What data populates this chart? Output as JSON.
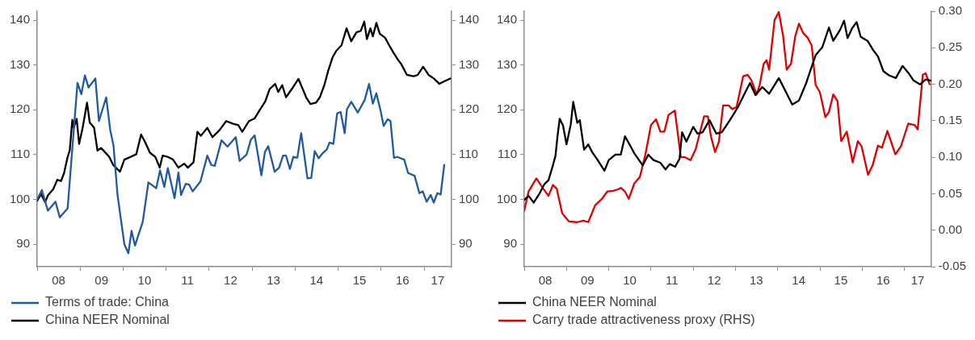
{
  "chart_data": [
    {
      "type": "line",
      "legend": "bottom",
      "grid": false,
      "xlim": [
        "2008-01-01",
        "2017-08-21"
      ],
      "xticks": [
        {
          "value": "2008",
          "label": null
        },
        {
          "value": "2008-07-01",
          "label": "08"
        },
        {
          "value": "2009",
          "label": null
        },
        {
          "value": "2009-07-01",
          "label": "09"
        },
        {
          "value": "2010",
          "label": null
        },
        {
          "value": "2010-07-01",
          "label": "10"
        },
        {
          "value": "2011",
          "label": null
        },
        {
          "value": "2011-07-01",
          "label": "11"
        },
        {
          "value": "2012",
          "label": null
        },
        {
          "value": "2012-07-01",
          "label": "12"
        },
        {
          "value": "2013",
          "label": null
        },
        {
          "value": "2013-07-01",
          "label": "13"
        },
        {
          "value": "2014",
          "label": null
        },
        {
          "value": "2014-07-01",
          "label": "14"
        },
        {
          "value": "2015",
          "label": null
        },
        {
          "value": "2015-07-01",
          "label": "15"
        },
        {
          "value": "2016",
          "label": null
        },
        {
          "value": "2016-07-01",
          "label": "16"
        },
        {
          "value": "2017",
          "label": null
        },
        {
          "value": "2017-04-26",
          "label": "17"
        }
      ],
      "ylim": [
        85,
        142
      ],
      "yticks": [
        90,
        100,
        110,
        120,
        130,
        140
      ],
      "y2lim": [
        85,
        142
      ],
      "y2ticks": [
        90,
        100,
        110,
        120,
        130,
        140
      ],
      "series": [
        {
          "name": "Terms of trade: China",
          "color": "#1f5aa0",
          "x": [
            "2008-01-01",
            "2008-02-10",
            "2008-04-01",
            "2008-06-05",
            "2008-07-11",
            "2008-09-16",
            "2008-12-09",
            "2009-01-11",
            "2009-02-10",
            "2009-03-13",
            "2009-05-10",
            "2009-06-09",
            "2009-08-10",
            "2009-09-13",
            "2009-10-11",
            "2009-11-14",
            "2010-01-11",
            "2010-02-14",
            "2010-03-13",
            "2010-04-11",
            "2010-06-16",
            "2010-08-03",
            "2010-10-08",
            "2010-11-10",
            "2010-12-16",
            "2011-01-15",
            "2011-03-13",
            "2011-04-15",
            "2011-05-07",
            "2011-06-16",
            "2011-07-15",
            "2011-08-14",
            "2011-10-19",
            "2011-12-16",
            "2012-01-19",
            "2012-02-17",
            "2012-04-15",
            "2012-06-05",
            "2012-08-14",
            "2012-09-16",
            "2012-11-14",
            "2012-12-20",
            "2013-01-22",
            "2013-03-20",
            "2013-04-19",
            "2013-05-17",
            "2013-07-11",
            "2013-08-17",
            "2013-09-20",
            "2013-10-15",
            "2013-11-17",
            "2013-12-16",
            "2014-01-19",
            "2014-02-21",
            "2014-04-15",
            "2014-05-17",
            "2014-06-16",
            "2014-07-19",
            "2014-08-21",
            "2014-09-27",
            "2014-10-19",
            "2014-11-21",
            "2014-12-23",
            "2015-01-22",
            "2015-02-25",
            "2015-03-16",
            "2015-04-22",
            "2015-06-16",
            "2015-08-14",
            "2015-09-20",
            "2015-10-22",
            "2015-11-21",
            "2015-12-27",
            "2016-01-22",
            "2016-02-25",
            "2016-03-20",
            "2016-04-19",
            "2016-05-17",
            "2016-07-15",
            "2016-08-17",
            "2016-10-11",
            "2016-11-21",
            "2016-12-20",
            "2017-01-22",
            "2017-02-25",
            "2017-03-23",
            "2017-04-22",
            "2017-05-21",
            "2017-06-20"
          ],
          "values": [
            100,
            102.1,
            97.5,
            99.5,
            96,
            98,
            126,
            123.5,
            127.7,
            125,
            127,
            117.5,
            122.8,
            115.5,
            112,
            101,
            90,
            88,
            93,
            89.7,
            95,
            103.8,
            102.5,
            106.5,
            102.8,
            107,
            100.3,
            106,
            101,
            103.5,
            103.3,
            101.8,
            104,
            109.8,
            107.7,
            107.5,
            113.2,
            111.8,
            113.9,
            108.6,
            110,
            113.3,
            114.3,
            105.4,
            110.6,
            111.9,
            106.2,
            107.1,
            109.8,
            109.8,
            106.8,
            109.5,
            109.3,
            114.8,
            104.7,
            104.8,
            110.8,
            109.2,
            110.3,
            111.2,
            112.7,
            112.4,
            119.2,
            119.5,
            114.8,
            120.1,
            121.8,
            119.4,
            122.2,
            125.8,
            121.4,
            123.7,
            119.8,
            116.4,
            117.9,
            117.5,
            109.3,
            109.5,
            108.9,
            105.9,
            105.3,
            101.4,
            101.8,
            99.5,
            101,
            99.3,
            101.4,
            101.1,
            107.7
          ]
        },
        {
          "name": "China NEER Nominal",
          "color": "#000000",
          "x": [
            "2008-01-01",
            "2008-02-03",
            "2008-03-09",
            "2008-04-01",
            "2008-05-17",
            "2008-06-20",
            "2008-07-22",
            "2008-08-17",
            "2008-09-16",
            "2008-10-04",
            "2008-10-26",
            "2008-11-07",
            "2008-12-02",
            "2008-12-23",
            "2009-01-22",
            "2009-02-28",
            "2009-03-23",
            "2009-04-29",
            "2009-05-28",
            "2009-06-27",
            "2009-07-29",
            "2009-09-05",
            "2009-10-08",
            "2009-12-05",
            "2010-01-11",
            "2010-03-05",
            "2010-04-22",
            "2010-06-02",
            "2010-07-08",
            "2010-08-17",
            "2010-10-01",
            "2010-11-07",
            "2010-12-02",
            "2011-01-15",
            "2011-02-28",
            "2011-04-15",
            "2011-06-02",
            "2011-07-04",
            "2011-08-21",
            "2011-09-23",
            "2011-10-22",
            "2011-12-16",
            "2012-01-29",
            "2012-03-27",
            "2012-05-25",
            "2012-07-22",
            "2012-09-05",
            "2012-10-08",
            "2012-12-05",
            "2013-01-22",
            "2013-03-09",
            "2013-04-22",
            "2013-05-28",
            "2013-07-15",
            "2013-08-10",
            "2013-09-13",
            "2013-10-15",
            "2013-12-02",
            "2014-01-29",
            "2014-03-02",
            "2014-04-04",
            "2014-05-10",
            "2014-06-27",
            "2014-07-29",
            "2014-09-05",
            "2014-10-08",
            "2014-11-14",
            "2014-12-16",
            "2015-01-29",
            "2015-03-13",
            "2015-04-22",
            "2015-06-05",
            "2015-07-11",
            "2015-08-10",
            "2015-09-02",
            "2015-10-01",
            "2015-10-22",
            "2015-11-21",
            "2015-12-20",
            "2016-02-03",
            "2016-03-09",
            "2016-04-11",
            "2016-05-17",
            "2016-06-20",
            "2016-08-07",
            "2016-10-04",
            "2016-11-07",
            "2016-12-23",
            "2017-02-07",
            "2017-03-23",
            "2017-05-10",
            "2017-06-23",
            "2017-08-10"
          ],
          "values": [
            99.7,
            101.2,
            99.4,
            100.9,
            102.3,
            104.4,
            104.1,
            105.9,
            109.5,
            110.9,
            117.8,
            116,
            118,
            112.4,
            116,
            121.6,
            117.2,
            116,
            110.9,
            111.5,
            110.6,
            109.5,
            107.7,
            106.2,
            108.9,
            109.5,
            110.1,
            114.5,
            112.7,
            110.4,
            109.5,
            107.1,
            109.8,
            109.5,
            108.9,
            107.1,
            108,
            107.1,
            108.3,
            115.1,
            114.2,
            116,
            113.9,
            115.4,
            117.5,
            116.9,
            116.6,
            115.1,
            117.5,
            118.1,
            120.1,
            121.9,
            124.6,
            125.8,
            124,
            125.5,
            122.8,
            124.6,
            126.9,
            124.9,
            122.8,
            121.3,
            121.6,
            122.8,
            125.5,
            128.7,
            131.7,
            133.2,
            134.4,
            138.2,
            135.3,
            137.3,
            137.6,
            139.7,
            135.8,
            138.2,
            136.4,
            139.4,
            137,
            136.1,
            134.4,
            132.9,
            131.4,
            130.2,
            127.8,
            127.5,
            127.8,
            129.6,
            127.8,
            127,
            125.8,
            126.4,
            127
          ]
        }
      ]
    },
    {
      "type": "line",
      "legend": "bottom",
      "grid": false,
      "xlim": [
        "2008-01-01",
        "2017-08-21"
      ],
      "xticks": [
        {
          "value": "2008",
          "label": null
        },
        {
          "value": "2008-07-01",
          "label": "08"
        },
        {
          "value": "2009",
          "label": null
        },
        {
          "value": "2009-07-01",
          "label": "09"
        },
        {
          "value": "2010",
          "label": null
        },
        {
          "value": "2010-07-01",
          "label": "10"
        },
        {
          "value": "2011",
          "label": null
        },
        {
          "value": "2011-07-01",
          "label": "11"
        },
        {
          "value": "2012",
          "label": null
        },
        {
          "value": "2012-07-01",
          "label": "12"
        },
        {
          "value": "2013",
          "label": null
        },
        {
          "value": "2013-07-01",
          "label": "13"
        },
        {
          "value": "2014",
          "label": null
        },
        {
          "value": "2014-07-01",
          "label": "14"
        },
        {
          "value": "2015",
          "label": null
        },
        {
          "value": "2015-07-01",
          "label": "15"
        },
        {
          "value": "2016",
          "label": null
        },
        {
          "value": "2016-07-01",
          "label": "16"
        },
        {
          "value": "2017",
          "label": null
        },
        {
          "value": "2017-04-26",
          "label": "17"
        }
      ],
      "ylim": [
        85,
        142
      ],
      "yticks": [
        90,
        100,
        110,
        120,
        130,
        140
      ],
      "y2lim": [
        -0.05,
        0.3
      ],
      "y2ticks": [
        -0.05,
        {
          "value": 0,
          "label": "0.00"
        },
        0.05,
        {
          "value": 0.1,
          "label": "0.10"
        },
        0.15,
        {
          "value": 0.2,
          "label": "0.20"
        },
        0.25,
        {
          "value": 0.3,
          "label": "0.30"
        }
      ],
      "series": [
        {
          "name": "China NEER Nominal",
          "color": "#000000",
          "x": [
            "2008-01-01",
            "2008-02-07",
            "2008-03-23",
            "2008-05-07",
            "2008-06-23",
            "2008-07-29",
            "2008-09-05",
            "2008-09-27",
            "2008-10-15",
            "2008-11-03",
            "2008-12-02",
            "2009-01-01",
            "2009-02-07",
            "2009-02-28",
            "2009-04-04",
            "2009-04-26",
            "2009-06-02",
            "2009-07-08",
            "2009-08-10",
            "2009-09-27",
            "2009-11-25",
            "2010-01-01",
            "2010-02-28",
            "2010-04-15",
            "2010-05-21",
            "2010-06-23",
            "2010-08-10",
            "2010-10-22",
            "2010-12-09",
            "2011-01-22",
            "2011-03-23",
            "2011-05-07",
            "2011-06-13",
            "2011-07-29",
            "2011-09-05",
            "2011-09-27",
            "2011-11-03",
            "2012-01-01",
            "2012-02-07",
            "2012-03-23",
            "2012-05-21",
            "2012-07-19",
            "2012-09-05",
            "2012-11-14",
            "2013-01-22",
            "2013-04-01",
            "2013-05-07",
            "2013-06-23",
            "2013-08-21",
            "2013-10-19",
            "2014-01-11",
            "2014-03-09",
            "2014-05-07",
            "2014-07-04",
            "2014-09-05",
            "2014-10-08",
            "2014-11-25",
            "2015-01-22",
            "2015-03-20",
            "2015-04-26",
            "2015-06-23",
            "2015-07-29",
            "2015-08-28",
            "2015-10-04",
            "2015-11-14",
            "2015-12-20",
            "2016-02-17",
            "2016-04-04",
            "2016-05-17",
            "2016-07-04",
            "2016-08-21",
            "2016-10-19",
            "2016-12-16",
            "2017-02-03",
            "2017-03-20",
            "2017-05-17",
            "2017-07-04",
            "2017-08-21"
          ],
          "values": [
            99.9,
            100.8,
            99.3,
            101.1,
            103.4,
            104.3,
            107.6,
            109.7,
            114.1,
            118,
            116.5,
            112.3,
            116.8,
            121.8,
            117.1,
            117.7,
            111.1,
            112.3,
            110.6,
            108.8,
            106.4,
            108.8,
            110,
            110,
            114.1,
            112.6,
            110.3,
            107.6,
            110,
            108.8,
            108.2,
            106.7,
            107.9,
            107.3,
            109.1,
            115,
            112.9,
            116.2,
            114.7,
            115,
            117.7,
            114.7,
            115,
            117.7,
            120.6,
            124.2,
            126,
            123.3,
            125.1,
            123.6,
            127.1,
            124.2,
            121.2,
            122.1,
            126,
            128.6,
            132.2,
            134,
            138.4,
            135.4,
            137.8,
            139.9,
            136,
            138.1,
            139.6,
            136.3,
            135.4,
            133.4,
            131.9,
            128.6,
            127.7,
            127.1,
            129.8,
            128.3,
            126.6,
            125.7,
            126.8,
            126.5
          ]
        },
        {
          "name": "Carry trade attractiveness proxy (RHS)",
          "color": "#e00000",
          "axis": "y2",
          "x": [
            "2008-01-01",
            "2008-02-07",
            "2008-04-15",
            "2008-06-13",
            "2008-07-29",
            "2008-09-05",
            "2008-10-08",
            "2008-11-25",
            "2009-01-22",
            "2009-04-04",
            "2009-05-28",
            "2009-07-08",
            "2009-09-05",
            "2009-11-03",
            "2009-12-20",
            "2010-02-07",
            "2010-03-23",
            "2010-04-15",
            "2010-05-21",
            "2010-06-23",
            "2010-08-10",
            "2010-09-27",
            "2010-11-14",
            "2011-01-01",
            "2011-02-14",
            "2011-03-23",
            "2011-04-26",
            "2011-06-02",
            "2011-07-26",
            "2011-09-16",
            "2011-10-22",
            "2011-12-09",
            "2012-01-22",
            "2012-04-04",
            "2012-05-07",
            "2012-06-02",
            "2012-07-08",
            "2012-08-10",
            "2012-09-16",
            "2012-11-03",
            "2012-12-05",
            "2013-01-11",
            "2013-03-09",
            "2013-04-15",
            "2013-05-17",
            "2013-07-04",
            "2013-07-29",
            "2013-09-02",
            "2013-09-27",
            "2013-10-19",
            "2013-12-05",
            "2014-01-11",
            "2014-02-17",
            "2014-03-20",
            "2014-04-26",
            "2014-06-02",
            "2014-07-04",
            "2014-08-10",
            "2014-09-16",
            "2014-10-22",
            "2014-11-25",
            "2015-01-01",
            "2015-02-17",
            "2015-03-20",
            "2015-04-26",
            "2015-06-02",
            "2015-07-04",
            "2015-08-21",
            "2015-10-11",
            "2015-11-25",
            "2015-12-27",
            "2016-02-21",
            "2016-04-01",
            "2016-05-17",
            "2016-06-20",
            "2016-08-07",
            "2016-10-15",
            "2016-12-02",
            "2017-02-03",
            "2017-04-01",
            "2017-04-26",
            "2017-06-09",
            "2017-07-04",
            "2017-08-07"
          ],
          "values": [
            0.027,
            0.053,
            0.071,
            0.057,
            0.047,
            0.062,
            0.057,
            0.023,
            0.012,
            0.011,
            0.013,
            0.011,
            0.034,
            0.043,
            0.053,
            0.054,
            0.056,
            0.058,
            0.053,
            0.043,
            0.064,
            0.073,
            0.104,
            0.144,
            0.152,
            0.135,
            0.135,
            0.158,
            0.164,
            0.1,
            0.1,
            0.096,
            0.111,
            0.156,
            0.156,
            0.129,
            0.107,
            0.121,
            0.171,
            0.171,
            0.166,
            0.169,
            0.211,
            0.213,
            0.206,
            0.186,
            0.199,
            0.228,
            0.233,
            0.22,
            0.288,
            0.299,
            0.266,
            0.22,
            0.228,
            0.266,
            0.283,
            0.27,
            0.264,
            0.253,
            0.199,
            0.189,
            0.155,
            0.162,
            0.186,
            0.177,
            0.122,
            0.135,
            0.093,
            0.122,
            0.115,
            0.076,
            0.089,
            0.116,
            0.113,
            0.136,
            0.104,
            0.115,
            0.146,
            0.144,
            0.138,
            0.213,
            0.215,
            0.2
          ]
        }
      ]
    }
  ]
}
